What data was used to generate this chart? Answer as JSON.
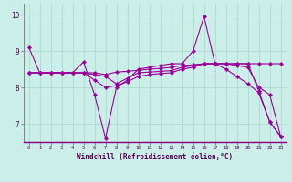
{
  "xlabel": "Windchill (Refroidissement éolien,°C)",
  "bg_color": "#cceee8",
  "grid_color": "#aaddcc",
  "line_color": "#990099",
  "xlim": [
    -0.5,
    23.5
  ],
  "ylim": [
    6.5,
    10.3
  ],
  "yticks": [
    7,
    8,
    9,
    10
  ],
  "xticks": [
    0,
    1,
    2,
    3,
    4,
    5,
    6,
    7,
    8,
    9,
    10,
    11,
    12,
    13,
    14,
    15,
    16,
    17,
    18,
    19,
    20,
    21,
    22,
    23
  ],
  "series": [
    [
      9.1,
      8.4,
      8.4,
      8.4,
      8.4,
      8.7,
      7.8,
      6.6,
      8.0,
      8.2,
      8.5,
      8.55,
      8.6,
      8.65,
      8.65,
      9.0,
      9.95,
      8.65,
      8.65,
      8.65,
      8.65,
      7.9,
      7.05,
      6.65
    ],
    [
      8.4,
      8.4,
      8.4,
      8.4,
      8.4,
      8.4,
      8.4,
      8.35,
      8.42,
      8.44,
      8.47,
      8.5,
      8.52,
      8.55,
      8.6,
      8.62,
      8.65,
      8.65,
      8.65,
      8.65,
      8.65,
      8.65,
      8.65,
      8.65
    ],
    [
      8.4,
      8.4,
      8.4,
      8.4,
      8.4,
      8.4,
      8.35,
      8.3,
      8.1,
      8.25,
      8.4,
      8.42,
      8.44,
      8.46,
      8.55,
      8.6,
      8.65,
      8.65,
      8.65,
      8.6,
      8.55,
      8.0,
      7.8,
      6.65
    ],
    [
      8.4,
      8.4,
      8.4,
      8.4,
      8.4,
      8.4,
      8.2,
      8.0,
      8.05,
      8.15,
      8.3,
      8.35,
      8.38,
      8.4,
      8.5,
      8.55,
      8.65,
      8.65,
      8.5,
      8.3,
      8.1,
      7.85,
      7.05,
      6.65
    ]
  ]
}
